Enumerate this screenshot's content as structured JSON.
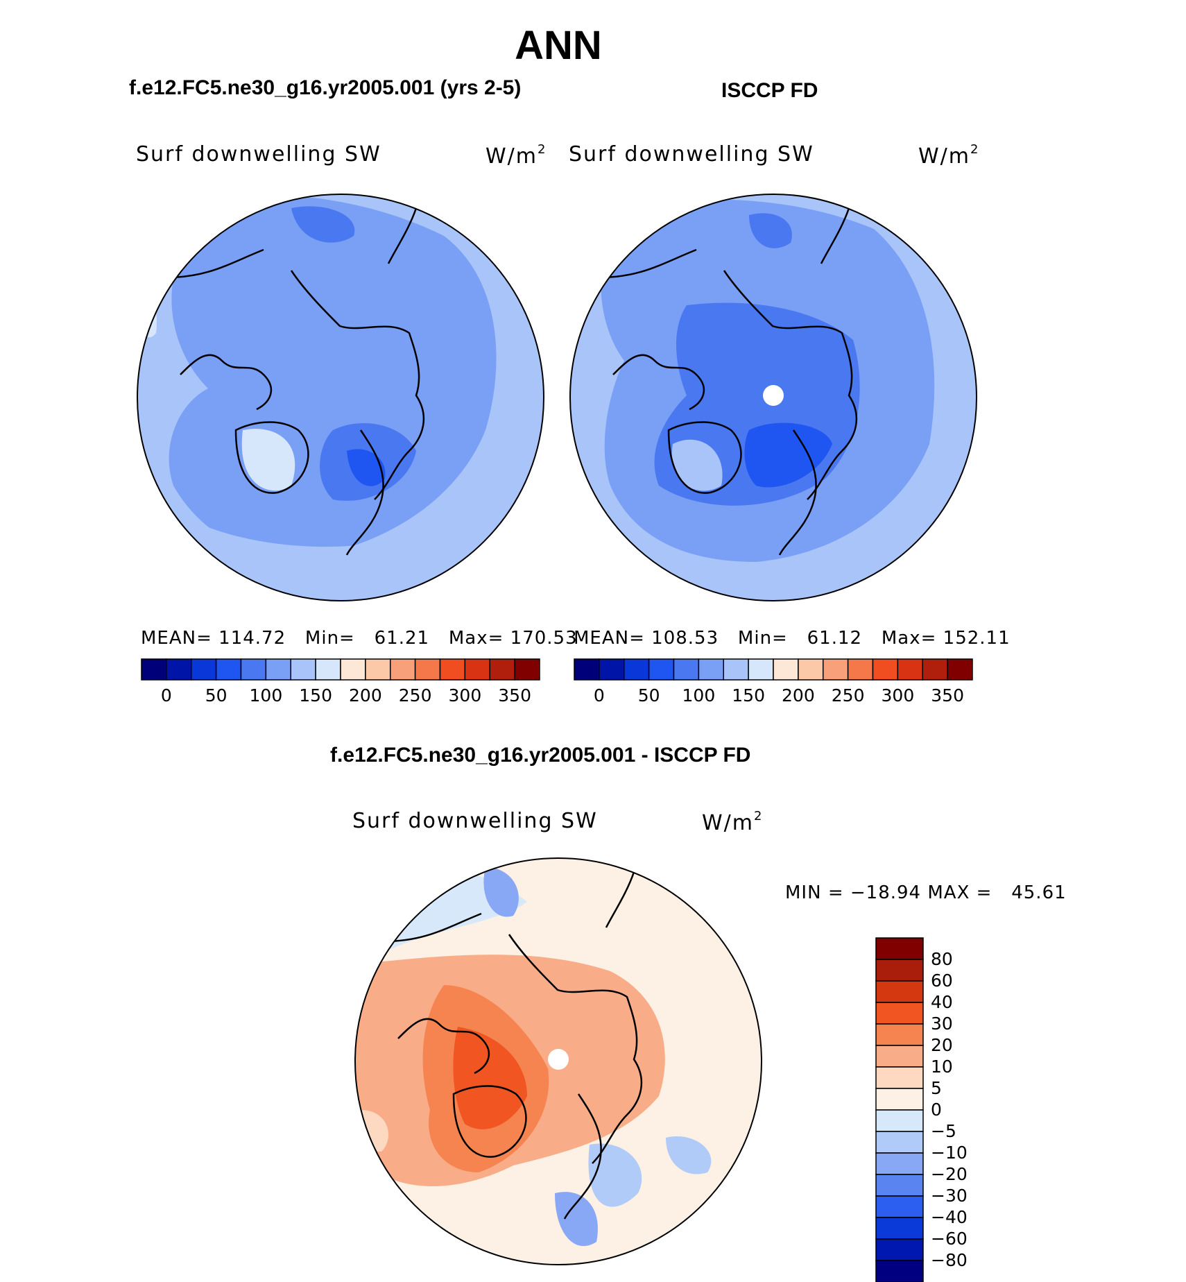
{
  "title": "ANN",
  "panels": {
    "model": {
      "subtitle": "f.e12.FC5.ne30_g16.yr2005.001 (yrs 2-5)",
      "label": "Surf downwelling SW",
      "units_base": "W/m",
      "units_exp": "2",
      "stats": "MEAN= 114.72   Min=   61.21   Max= 170.53"
    },
    "obs": {
      "subtitle": "ISCCP FD",
      "label": "Surf downwelling SW",
      "units_base": "W/m",
      "units_exp": "2",
      "stats": "MEAN= 108.53   Min=   61.12   Max= 152.11"
    },
    "diff": {
      "subtitle": "f.e12.FC5.ne30_g16.yr2005.001 - ISCCP FD",
      "label": "Surf downwelling SW",
      "units_base": "W/m",
      "units_exp": "2",
      "stats": "MIN = −18.94 MAX =   45.61"
    }
  },
  "colorbar_abs": {
    "colors": [
      "#00007a",
      "#0014a8",
      "#0a37d8",
      "#1f55f0",
      "#4a78f0",
      "#7aa0f5",
      "#a8c4f8",
      "#d6e6fb",
      "#fde8d8",
      "#fbc8a8",
      "#f7a07a",
      "#f4784a",
      "#f04e20",
      "#d83414",
      "#b01e0c",
      "#800000"
    ],
    "tick_labels": [
      "0",
      "50",
      "100",
      "150",
      "200",
      "250",
      "300",
      "350"
    ]
  },
  "colorbar_diff": {
    "colors": [
      "#800000",
      "#a81e0a",
      "#d43810",
      "#f05522",
      "#f58450",
      "#f8ad88",
      "#fcd9c0",
      "#fdf0e4",
      "#d8e8fb",
      "#b0cbf8",
      "#88a8f5",
      "#5a84f0",
      "#2c5ef0",
      "#0a3ad8",
      "#0018b0",
      "#000080"
    ],
    "tick_labels": [
      "80",
      "60",
      "40",
      "30",
      "20",
      "10",
      "5",
      "0",
      "−5",
      "−10",
      "−20",
      "−30",
      "−40",
      "−60",
      "−80"
    ]
  }
}
